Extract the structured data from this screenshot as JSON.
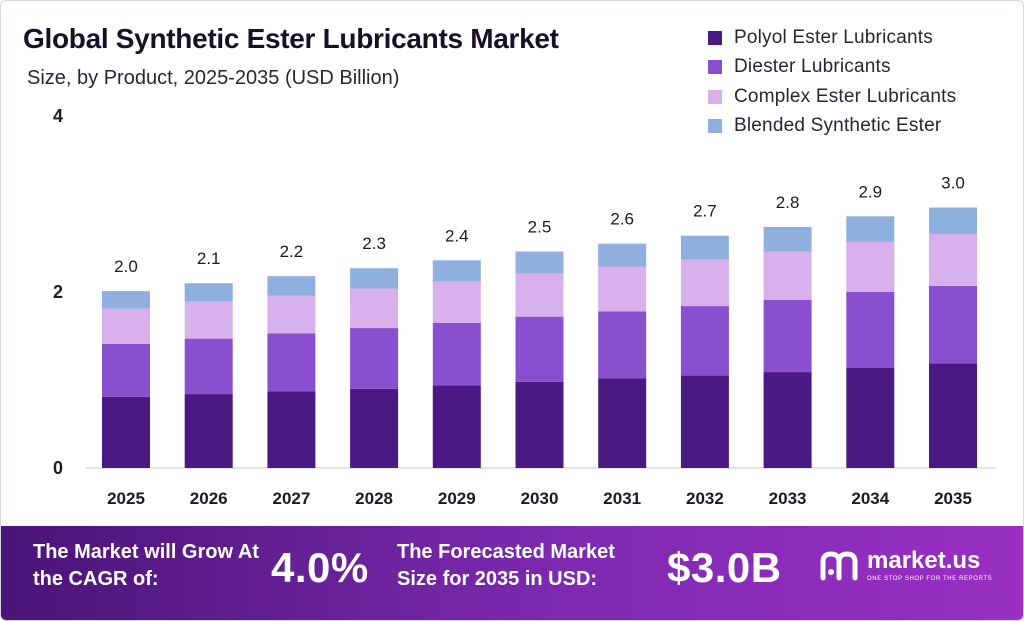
{
  "header": {
    "title": "Global Synthetic Ester Lubricants Market",
    "subtitle": "Size, by Product, 2025-2035 (USD Billion)"
  },
  "colors": {
    "polyol": "#4a1a82",
    "diester": "#8a4fcf",
    "complex": "#d7b0ec",
    "blended": "#8fb0df",
    "banner_start": "#4a1477",
    "banner_end": "#9a2fc4"
  },
  "chart_data": {
    "type": "bar",
    "stacked": true,
    "categories": [
      "2025",
      "2026",
      "2027",
      "2028",
      "2029",
      "2030",
      "2031",
      "2032",
      "2033",
      "2034",
      "2035"
    ],
    "series": [
      {
        "name": "Polyol Ester Lubricants",
        "color": "#4a1a82",
        "values": [
          0.81,
          0.84,
          0.87,
          0.9,
          0.94,
          0.98,
          1.02,
          1.05,
          1.09,
          1.14,
          1.19
        ]
      },
      {
        "name": "Diester Lubricants",
        "color": "#8a4fcf",
        "values": [
          0.6,
          0.63,
          0.66,
          0.69,
          0.71,
          0.74,
          0.76,
          0.79,
          0.82,
          0.86,
          0.88
        ]
      },
      {
        "name": "Complex Ester Lubricants",
        "color": "#d7b0ec",
        "values": [
          0.4,
          0.42,
          0.43,
          0.45,
          0.47,
          0.49,
          0.51,
          0.53,
          0.55,
          0.57,
          0.59
        ]
      },
      {
        "name": "Blended Synthetic Ester",
        "color": "#8fb0df",
        "values": [
          0.2,
          0.21,
          0.22,
          0.23,
          0.24,
          0.25,
          0.26,
          0.27,
          0.28,
          0.29,
          0.3
        ]
      }
    ],
    "totals": [
      "2.0",
      "2.1",
      "2.2",
      "2.3",
      "2.4",
      "2.5",
      "2.6",
      "2.7",
      "2.8",
      "2.9",
      "3.0"
    ],
    "ylim": [
      0,
      4
    ],
    "yticks": [
      "0",
      "2",
      "4"
    ],
    "grid": false,
    "legend_position": "top-right"
  },
  "banner": {
    "cagr_text": "The Market will Grow At the CAGR of:",
    "cagr_value": "4.0%",
    "forecast_text": "The Forecasted Market Size for 2035 in USD:",
    "forecast_value": "$3.0B"
  },
  "logo": {
    "icon": "market-us-logo-icon",
    "name": "market.us",
    "tagline": "ONE STOP SHOP FOR THE REPORTS"
  }
}
